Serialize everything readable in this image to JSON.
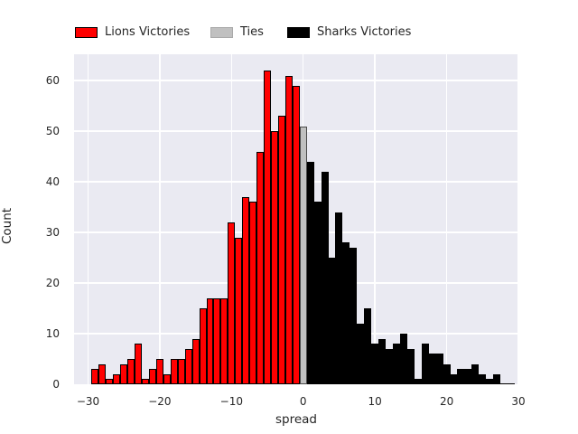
{
  "chart_data": {
    "type": "bar",
    "subtype": "histogram",
    "title": "",
    "xlabel": "spread",
    "ylabel": "Count",
    "x_ticks": [
      -30,
      -20,
      -10,
      0,
      10,
      20,
      30
    ],
    "y_ticks": [
      0,
      10,
      20,
      30,
      40,
      50,
      60
    ],
    "xlim": [
      -31.95,
      30.0
    ],
    "ylim": [
      0,
      65.2
    ],
    "bin_width": 1,
    "grid": true,
    "legend_position": "top-center",
    "total_games": 1000,
    "series": [
      {
        "name": "Lions Victories",
        "color": "#ff0000",
        "edge_color": "#000000",
        "x": [
          -29,
          -28,
          -27,
          -26,
          -25,
          -24,
          -23,
          -22,
          -21,
          -20,
          -19,
          -18,
          -17,
          -16,
          -15,
          -14,
          -13,
          -12,
          -11,
          -10,
          -9,
          -8,
          -7,
          -6,
          -5,
          -4,
          -3,
          -2,
          -1
        ],
        "counts": [
          3,
          4,
          1,
          2,
          4,
          5,
          8,
          1,
          3,
          5,
          2,
          5,
          5,
          7,
          9,
          15,
          17,
          17,
          17,
          32,
          29,
          37,
          36,
          46,
          62,
          50,
          53,
          61,
          59
        ]
      },
      {
        "name": "Ties",
        "color": "#c0c0c0",
        "edge_color": "#4a4a4a",
        "x": [
          0
        ],
        "counts": [
          51
        ]
      },
      {
        "name": "Sharks Victories",
        "color": "#000000",
        "edge_color": "#000000",
        "x": [
          1,
          2,
          3,
          4,
          5,
          6,
          7,
          8,
          9,
          10,
          11,
          12,
          13,
          14,
          15,
          16,
          17,
          18,
          19,
          20,
          21,
          22,
          23,
          24,
          25,
          26,
          27,
          28,
          29
        ],
        "counts": [
          44,
          36,
          42,
          25,
          34,
          28,
          27,
          12,
          15,
          8,
          9,
          7,
          8,
          10,
          7,
          1,
          8,
          6,
          6,
          4,
          2,
          3,
          3,
          4,
          2,
          1,
          2,
          0,
          0
        ]
      }
    ]
  },
  "legend": {
    "items": [
      {
        "label": "Lions Victories",
        "swatch": "red-swatch"
      },
      {
        "label": "Ties",
        "swatch": "grey-swatch"
      },
      {
        "label": "Sharks Victories",
        "swatch": "black-swatch"
      }
    ]
  }
}
